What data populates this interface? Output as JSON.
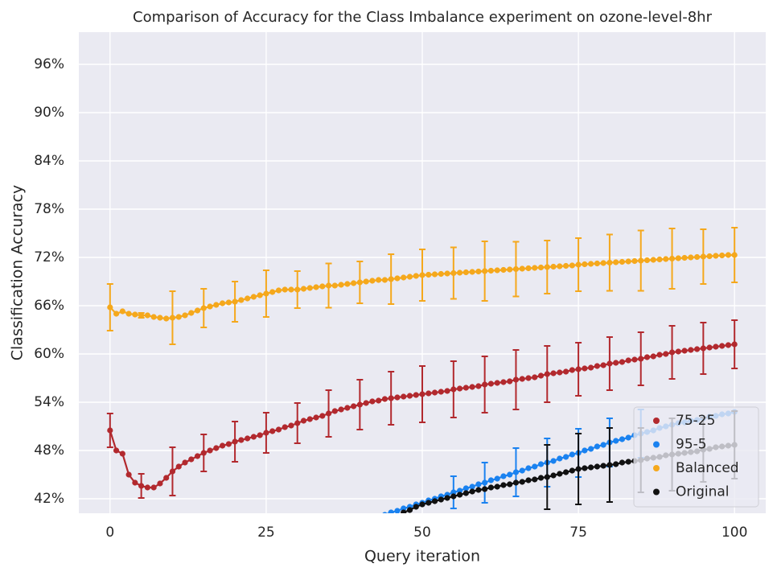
{
  "chart_data": {
    "type": "line",
    "title": "Comparison of Accuracy for the Class Imbalance experiment on ozone-level-8hr",
    "x_label": "Query iteration",
    "y_label": "Classification Accuracy",
    "xlim": [
      -5,
      105
    ],
    "ylim": [
      40.2,
      100
    ],
    "xticks": [
      0,
      25,
      50,
      75,
      100
    ],
    "yticks": [
      {
        "value": 42,
        "label": "42%"
      },
      {
        "value": 48,
        "label": "48%"
      },
      {
        "value": 54,
        "label": "54%"
      },
      {
        "value": 60,
        "label": "60%"
      },
      {
        "value": 66,
        "label": "66%"
      },
      {
        "value": 72,
        "label": "72%"
      },
      {
        "value": 78,
        "label": "78%"
      },
      {
        "value": 84,
        "label": "84%"
      },
      {
        "value": 90,
        "label": "90%"
      },
      {
        "value": 96,
        "label": "96%"
      }
    ],
    "grid": true,
    "legend": "lower right",
    "x": [
      0,
      1,
      2,
      3,
      4,
      5,
      6,
      7,
      8,
      9,
      10,
      11,
      12,
      13,
      14,
      15,
      16,
      17,
      18,
      19,
      20,
      21,
      22,
      23,
      24,
      25,
      26,
      27,
      28,
      29,
      30,
      31,
      32,
      33,
      34,
      35,
      36,
      37,
      38,
      39,
      40,
      41,
      42,
      43,
      44,
      45,
      46,
      47,
      48,
      49,
      50,
      51,
      52,
      53,
      54,
      55,
      56,
      57,
      58,
      59,
      60,
      61,
      62,
      63,
      64,
      65,
      66,
      67,
      68,
      69,
      70,
      71,
      72,
      73,
      74,
      75,
      76,
      77,
      78,
      79,
      80,
      81,
      82,
      83,
      84,
      85,
      86,
      87,
      88,
      89,
      90,
      91,
      92,
      93,
      94,
      95,
      96,
      97,
      98,
      99,
      100
    ],
    "series": [
      {
        "name": "75-25",
        "color": "#b2292e",
        "values": [
          50.5,
          48.0,
          47.6,
          45.0,
          44.0,
          43.6,
          43.4,
          43.4,
          43.9,
          44.6,
          45.4,
          46.0,
          46.5,
          46.9,
          47.3,
          47.7,
          48.0,
          48.3,
          48.6,
          48.8,
          49.1,
          49.3,
          49.5,
          49.7,
          49.9,
          50.2,
          50.4,
          50.6,
          50.9,
          51.1,
          51.4,
          51.7,
          51.9,
          52.1,
          52.3,
          52.6,
          52.9,
          53.1,
          53.3,
          53.5,
          53.7,
          53.9,
          54.1,
          54.2,
          54.4,
          54.5,
          54.6,
          54.7,
          54.8,
          54.9,
          55.0,
          55.1,
          55.2,
          55.3,
          55.4,
          55.6,
          55.7,
          55.8,
          55.9,
          56.0,
          56.2,
          56.3,
          56.4,
          56.5,
          56.6,
          56.8,
          56.9,
          57.0,
          57.1,
          57.3,
          57.5,
          57.6,
          57.7,
          57.8,
          58.0,
          58.1,
          58.2,
          58.3,
          58.5,
          58.6,
          58.8,
          58.9,
          59.0,
          59.2,
          59.3,
          59.4,
          59.6,
          59.7,
          59.9,
          60.0,
          60.2,
          60.3,
          60.4,
          60.5,
          60.6,
          60.7,
          60.8,
          60.9,
          61.0,
          61.1,
          61.2
        ],
        "errors": [
          2.1,
          null,
          null,
          null,
          null,
          1.5,
          null,
          null,
          null,
          null,
          3.0,
          null,
          null,
          null,
          null,
          2.3,
          null,
          null,
          null,
          null,
          2.5,
          null,
          null,
          null,
          null,
          2.5,
          null,
          null,
          null,
          null,
          2.5,
          null,
          null,
          null,
          null,
          2.9,
          null,
          null,
          null,
          null,
          3.1,
          null,
          null,
          null,
          null,
          3.3,
          null,
          null,
          null,
          null,
          3.5,
          null,
          null,
          null,
          null,
          3.5,
          null,
          null,
          null,
          null,
          3.5,
          null,
          null,
          null,
          null,
          3.7,
          null,
          null,
          null,
          null,
          3.5,
          null,
          null,
          null,
          null,
          3.3,
          null,
          null,
          null,
          null,
          3.3,
          null,
          null,
          null,
          null,
          3.3,
          null,
          null,
          null,
          null,
          3.3,
          null,
          null,
          null,
          null,
          3.2,
          null,
          null,
          null,
          null,
          3.0
        ]
      },
      {
        "name": "95-5",
        "color": "#1a82f0",
        "values": [
          null,
          null,
          null,
          null,
          null,
          null,
          null,
          null,
          null,
          null,
          null,
          null,
          null,
          null,
          null,
          null,
          null,
          null,
          null,
          null,
          null,
          null,
          null,
          null,
          null,
          null,
          null,
          null,
          null,
          null,
          null,
          null,
          null,
          null,
          null,
          null,
          null,
          null,
          null,
          null,
          null,
          null,
          null,
          null,
          40.0,
          40.3,
          40.5,
          40.8,
          41.0,
          41.3,
          41.5,
          41.8,
          42.0,
          42.3,
          42.5,
          42.8,
          43.0,
          43.3,
          43.5,
          43.8,
          44.0,
          44.3,
          44.5,
          44.8,
          45.0,
          45.3,
          45.5,
          45.8,
          46.0,
          46.3,
          46.5,
          46.7,
          47.0,
          47.2,
          47.5,
          47.7,
          48.0,
          48.2,
          48.5,
          48.7,
          49.0,
          49.2,
          49.4,
          49.6,
          49.9,
          50.1,
          50.3,
          50.5,
          50.8,
          51.0,
          51.2,
          51.4,
          51.5,
          51.7,
          51.8,
          52.0,
          52.2,
          52.3,
          52.5,
          52.6,
          52.8
        ],
        "errors": [
          null,
          null,
          null,
          null,
          null,
          null,
          null,
          null,
          null,
          null,
          null,
          null,
          null,
          null,
          null,
          null,
          null,
          null,
          null,
          null,
          null,
          null,
          null,
          null,
          null,
          null,
          null,
          null,
          null,
          null,
          null,
          null,
          null,
          null,
          null,
          null,
          null,
          null,
          null,
          null,
          null,
          null,
          null,
          null,
          null,
          null,
          null,
          null,
          null,
          null,
          null,
          null,
          null,
          null,
          null,
          2.0,
          null,
          null,
          null,
          null,
          2.5,
          null,
          null,
          null,
          null,
          3.0,
          null,
          null,
          null,
          null,
          3.0,
          null,
          null,
          null,
          null,
          3.0,
          null,
          null,
          null,
          null,
          3.0,
          null,
          null,
          null,
          null,
          3.0,
          null,
          null,
          null,
          null,
          null,
          null,
          null,
          null,
          null,
          null,
          null,
          null,
          null,
          null,
          null
        ]
      },
      {
        "name": "Balanced",
        "color": "#f5a81c",
        "values": [
          65.8,
          65.0,
          65.3,
          65.0,
          64.9,
          64.8,
          64.8,
          64.6,
          64.5,
          64.4,
          64.5,
          64.6,
          64.8,
          65.1,
          65.4,
          65.7,
          65.9,
          66.1,
          66.3,
          66.4,
          66.5,
          66.7,
          66.9,
          67.1,
          67.3,
          67.5,
          67.7,
          67.9,
          68.0,
          68.0,
          68.0,
          68.1,
          68.2,
          68.3,
          68.4,
          68.5,
          68.5,
          68.6,
          68.7,
          68.8,
          68.9,
          69.0,
          69.1,
          69.2,
          69.2,
          69.3,
          69.4,
          69.5,
          69.6,
          69.7,
          69.8,
          69.85,
          69.9,
          69.95,
          70.0,
          70.05,
          70.1,
          70.15,
          70.2,
          70.25,
          70.3,
          70.35,
          70.4,
          70.45,
          70.5,
          70.55,
          70.6,
          70.65,
          70.7,
          70.75,
          70.8,
          70.85,
          70.9,
          70.95,
          71.0,
          71.1,
          71.15,
          71.2,
          71.25,
          71.3,
          71.35,
          71.4,
          71.45,
          71.5,
          71.55,
          71.6,
          71.65,
          71.7,
          71.75,
          71.8,
          71.85,
          71.9,
          71.95,
          72.0,
          72.05,
          72.1,
          72.15,
          72.2,
          72.25,
          72.3,
          72.3
        ],
        "errors": [
          2.9,
          null,
          null,
          null,
          null,
          0.3,
          null,
          null,
          null,
          null,
          3.3,
          null,
          null,
          null,
          null,
          2.4,
          null,
          null,
          null,
          null,
          2.5,
          null,
          null,
          null,
          null,
          2.9,
          null,
          null,
          null,
          null,
          2.3,
          null,
          null,
          null,
          null,
          2.75,
          null,
          null,
          null,
          null,
          2.6,
          null,
          null,
          null,
          null,
          3.1,
          null,
          null,
          null,
          null,
          3.2,
          null,
          null,
          null,
          null,
          3.2,
          null,
          null,
          null,
          null,
          3.7,
          null,
          null,
          null,
          null,
          3.4,
          null,
          null,
          null,
          null,
          3.3,
          null,
          null,
          null,
          null,
          3.3,
          null,
          null,
          null,
          null,
          3.5,
          null,
          null,
          null,
          null,
          3.75,
          null,
          null,
          null,
          null,
          3.75,
          null,
          null,
          null,
          null,
          3.4,
          null,
          null,
          null,
          null,
          3.4
        ]
      },
      {
        "name": "Original",
        "color": "#111111",
        "values": [
          null,
          null,
          null,
          null,
          null,
          null,
          null,
          null,
          null,
          null,
          null,
          null,
          null,
          null,
          null,
          null,
          null,
          null,
          null,
          null,
          null,
          null,
          null,
          null,
          null,
          null,
          null,
          null,
          null,
          null,
          null,
          null,
          null,
          null,
          null,
          null,
          null,
          null,
          null,
          null,
          null,
          null,
          null,
          null,
          null,
          null,
          null,
          40.3,
          40.6,
          41.0,
          41.3,
          41.5,
          41.7,
          41.9,
          42.1,
          42.3,
          42.5,
          42.7,
          42.9,
          43.1,
          43.2,
          43.4,
          43.5,
          43.7,
          43.8,
          44.0,
          44.1,
          44.3,
          44.4,
          44.6,
          44.7,
          44.9,
          45.1,
          45.3,
          45.5,
          45.7,
          45.8,
          45.9,
          46.0,
          46.1,
          46.2,
          46.3,
          46.5,
          46.6,
          46.7,
          46.8,
          47.0,
          47.1,
          47.2,
          47.4,
          47.5,
          47.6,
          47.7,
          47.8,
          47.9,
          48.1,
          48.2,
          48.4,
          48.5,
          48.6,
          48.7
        ],
        "errors": [
          null,
          null,
          null,
          null,
          null,
          null,
          null,
          null,
          null,
          null,
          null,
          null,
          null,
          null,
          null,
          null,
          null,
          null,
          null,
          null,
          null,
          null,
          null,
          null,
          null,
          null,
          null,
          null,
          null,
          null,
          null,
          null,
          null,
          null,
          null,
          null,
          null,
          null,
          null,
          null,
          null,
          null,
          null,
          null,
          null,
          null,
          null,
          null,
          null,
          null,
          null,
          null,
          null,
          null,
          null,
          null,
          null,
          null,
          null,
          null,
          null,
          null,
          null,
          null,
          null,
          null,
          null,
          null,
          null,
          null,
          4.0,
          null,
          null,
          null,
          null,
          4.4,
          null,
          null,
          null,
          null,
          4.6,
          null,
          null,
          null,
          null,
          4.0,
          null,
          null,
          null,
          null,
          4.5,
          null,
          null,
          null,
          null,
          4.0,
          null,
          null,
          null,
          null,
          4.2
        ]
      }
    ]
  }
}
